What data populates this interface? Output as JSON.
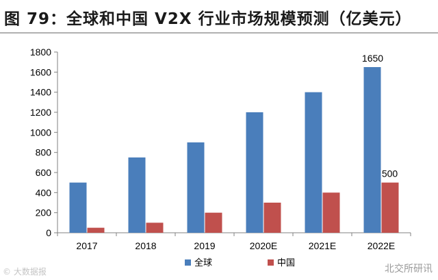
{
  "chart_data": {
    "type": "bar",
    "title": "图 79：全球和中国 V2X 行业市场规模预测（亿美元）",
    "categories": [
      "2017",
      "2018",
      "2019",
      "2020E",
      "2021E",
      "2022E"
    ],
    "series": [
      {
        "name": "全球",
        "color": "#4a7ebb",
        "values": [
          500,
          750,
          900,
          1200,
          1400,
          1650
        ]
      },
      {
        "name": "中国",
        "color": "#c0504d",
        "values": [
          50,
          100,
          200,
          300,
          400,
          500
        ]
      }
    ],
    "ylim": [
      0,
      1800
    ],
    "yticks": [
      0,
      200,
      400,
      600,
      800,
      1000,
      1200,
      1400,
      1600,
      1800
    ],
    "data_labels": [
      {
        "series": 0,
        "index": 5,
        "text": "1650"
      },
      {
        "series": 1,
        "index": 5,
        "text": "500"
      }
    ],
    "xlabel": "",
    "ylabel": "",
    "grid": false,
    "legend": "bottom-center"
  },
  "watermarks": {
    "left": "© 大数据报",
    "right": "北交所研讯"
  }
}
